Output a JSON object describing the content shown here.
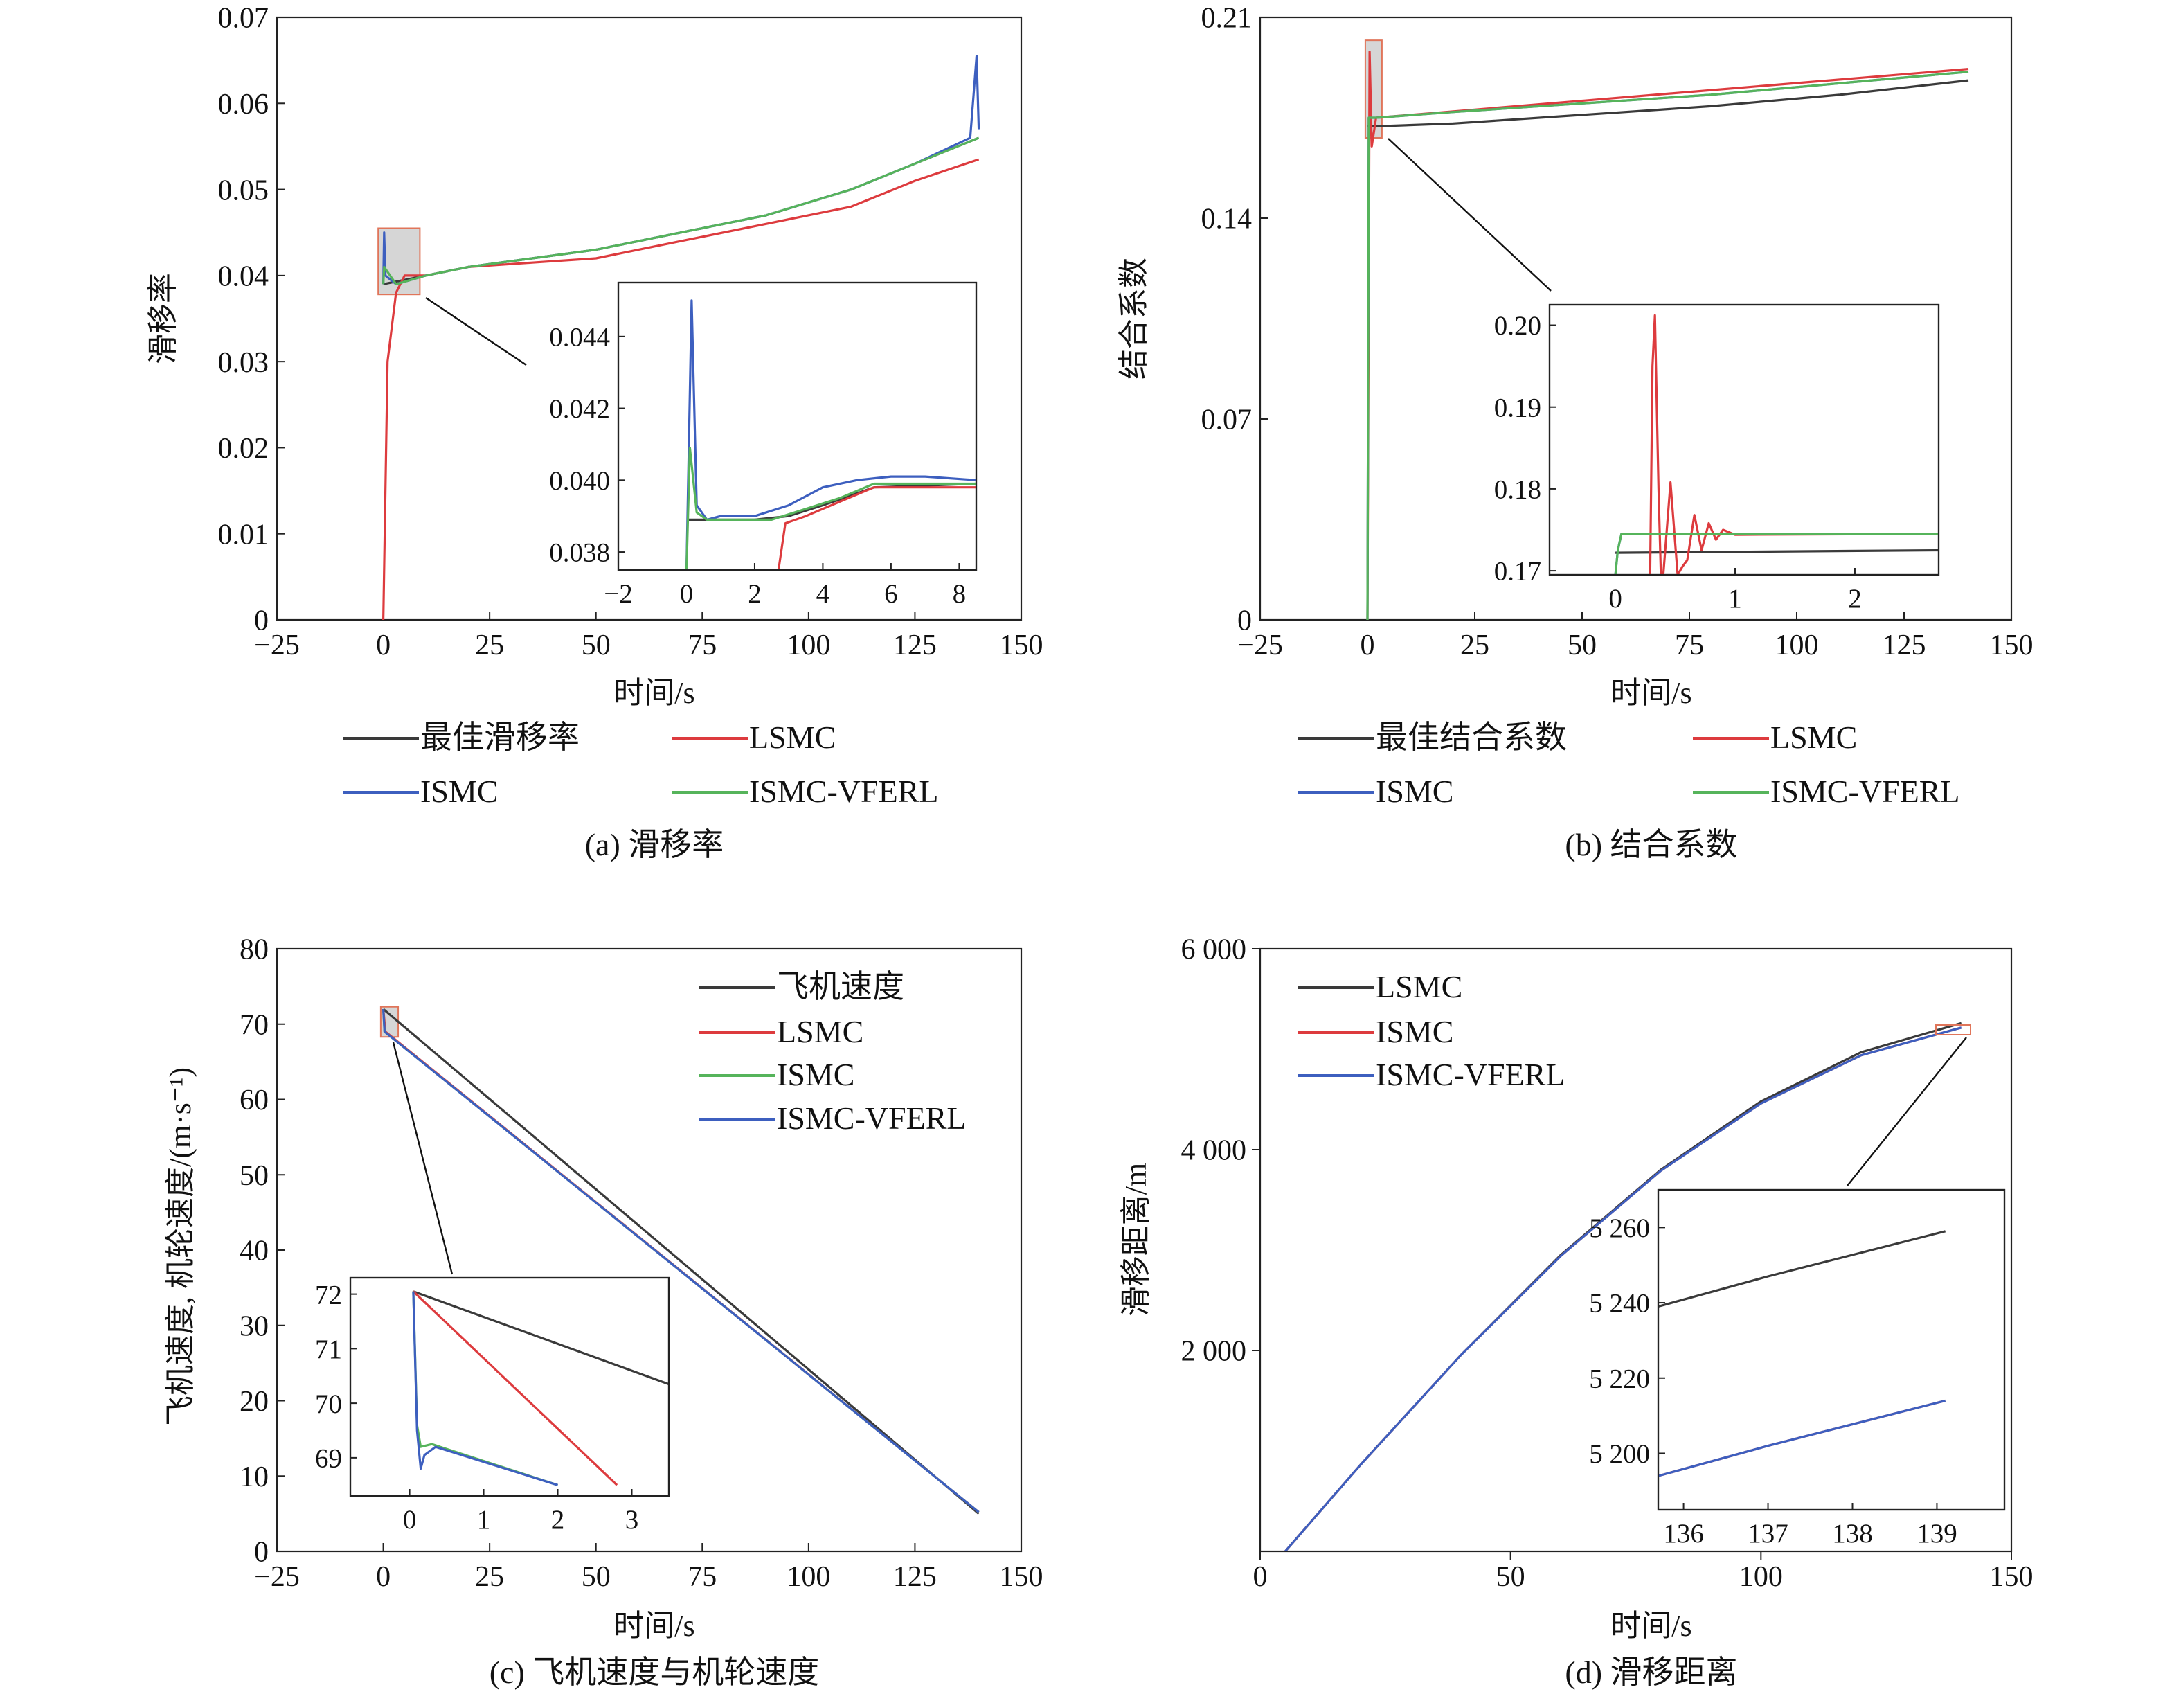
{
  "colors": {
    "black": "#3a3a3a",
    "red": "#dd3b3e",
    "blue": "#3d5fbf",
    "green": "#56b45b",
    "highlight_fill": "#c8c8c8",
    "highlight_stroke": "#e0755a"
  },
  "chart_data": [
    {
      "id": "a",
      "type": "line",
      "caption": "(a) 滑移率",
      "xlabel": "时间/s",
      "ylabel": "滑移率",
      "xlim": [
        -25,
        150
      ],
      "ylim": [
        0,
        0.07
      ],
      "xticks": [
        "−25",
        "0",
        "25",
        "50",
        "75",
        "100",
        "125",
        "150"
      ],
      "yticks": [
        "0",
        "0.01",
        "0.02",
        "0.03",
        "0.04",
        "0.05",
        "0.06",
        "0.07"
      ],
      "legend": [
        "最佳滑移率",
        "LSMC",
        "ISMC",
        "ISMC-VFERL"
      ],
      "series": [
        {
          "name": "最佳滑移率",
          "color": "black",
          "x": [
            0,
            10,
            20,
            35,
            50,
            70,
            90,
            110,
            125,
            140
          ],
          "y": [
            0.039,
            0.04,
            0.041,
            0.042,
            0.043,
            0.045,
            0.047,
            0.05,
            0.053,
            0.056
          ]
        },
        {
          "name": "LSMC",
          "color": "red",
          "x": [
            0,
            1,
            3,
            5,
            10,
            20,
            35,
            50,
            70,
            90,
            110,
            125,
            140
          ],
          "y": [
            0,
            0.03,
            0.038,
            0.04,
            0.04,
            0.041,
            0.0415,
            0.042,
            0.044,
            0.046,
            0.048,
            0.051,
            0.0535
          ]
        },
        {
          "name": "ISMC",
          "color": "blue",
          "x": [
            0,
            0.2,
            0.5,
            3,
            10,
            20,
            35,
            50,
            70,
            90,
            110,
            125,
            138,
            139.5,
            140
          ],
          "y": [
            0.039,
            0.045,
            0.04,
            0.039,
            0.04,
            0.041,
            0.042,
            0.043,
            0.045,
            0.047,
            0.05,
            0.053,
            0.056,
            0.0655,
            0.057
          ]
        },
        {
          "name": "ISMC-VFERL",
          "color": "green",
          "x": [
            0,
            0.2,
            3,
            10,
            20,
            35,
            50,
            70,
            90,
            110,
            125,
            140
          ],
          "y": [
            0.039,
            0.041,
            0.039,
            0.04,
            0.041,
            0.042,
            0.043,
            0.045,
            0.047,
            0.05,
            0.053,
            0.056
          ]
        }
      ],
      "inset": {
        "xlim": [
          -2,
          8.5
        ],
        "ylim": [
          0.0375,
          0.0455
        ],
        "xticks": [
          "−2",
          "0",
          "2",
          "4",
          "6",
          "8"
        ],
        "yticks": [
          "0.038",
          "0.040",
          "0.042",
          "0.044"
        ],
        "series": [
          {
            "name": "最佳滑移率",
            "color": "black",
            "x": [
              0,
              1,
              2,
              3,
              4,
              5.5,
              8.5
            ],
            "y": [
              0.0389,
              0.0389,
              0.0389,
              0.039,
              0.0393,
              0.0398,
              0.0399
            ]
          },
          {
            "name": "LSMC",
            "color": "red",
            "x": [
              2.7,
              2.9,
              3.5,
              4.5,
              5.5,
              8.5
            ],
            "y": [
              0.0375,
              0.0388,
              0.039,
              0.0394,
              0.0398,
              0.0398
            ]
          },
          {
            "name": "ISMC",
            "color": "blue",
            "x": [
              0,
              0.15,
              0.3,
              0.6,
              1,
              2,
              3,
              4,
              5,
              6,
              7,
              8.5
            ],
            "y": [
              0.0375,
              0.045,
              0.0393,
              0.0389,
              0.039,
              0.039,
              0.0393,
              0.0398,
              0.04,
              0.0401,
              0.0401,
              0.04
            ]
          },
          {
            "name": "ISMC-VFERL",
            "color": "green",
            "x": [
              0,
              0.1,
              0.3,
              0.6,
              1,
              2,
              2.5,
              3.5,
              4.5,
              5.5,
              8.5
            ],
            "y": [
              0.0375,
              0.0409,
              0.0391,
              0.0389,
              0.0389,
              0.0389,
              0.0389,
              0.0392,
              0.0395,
              0.0399,
              0.0399
            ]
          }
        ]
      }
    },
    {
      "id": "b",
      "type": "line",
      "caption": "(b) 结合系数",
      "xlabel": "时间/s",
      "ylabel": "结合系数",
      "xlim": [
        -25,
        150
      ],
      "ylim": [
        0,
        0.21
      ],
      "xticks": [
        "−25",
        "0",
        "25",
        "50",
        "75",
        "100",
        "125",
        "150"
      ],
      "yticks": [
        "0",
        "0.07",
        "0.14",
        "0.21"
      ],
      "legend": [
        "最佳结合系数",
        "LSMC",
        "ISMC",
        "ISMC-VFERL"
      ],
      "series": [
        {
          "name": "最佳结合系数",
          "color": "black",
          "x": [
            0,
            2,
            20,
            50,
            80,
            110,
            140
          ],
          "y": [
            0.172,
            0.172,
            0.173,
            0.176,
            0.179,
            0.183,
            0.188
          ]
        },
        {
          "name": "LSMC",
          "color": "red",
          "x": [
            0,
            0.5,
            1,
            2,
            140
          ],
          "y": [
            0,
            0.198,
            0.165,
            0.175,
            0.192
          ]
        },
        {
          "name": "ISMC",
          "color": "blue",
          "x": [
            0,
            0.3,
            2,
            20,
            50,
            80,
            110,
            140
          ],
          "y": [
            0,
            0.175,
            0.175,
            0.177,
            0.18,
            0.183,
            0.187,
            0.191
          ]
        },
        {
          "name": "ISMC-VFERL",
          "color": "green",
          "x": [
            0,
            0.3,
            2,
            20,
            50,
            80,
            110,
            140
          ],
          "y": [
            0,
            0.175,
            0.175,
            0.177,
            0.18,
            0.183,
            0.187,
            0.191
          ]
        }
      ],
      "inset": {
        "xlim": [
          -0.55,
          2.7
        ],
        "ylim": [
          0.1695,
          0.2025
        ],
        "xticks": [
          "0",
          "1",
          "2"
        ],
        "yticks": [
          "0.17",
          "0.18",
          "0.19",
          "0.20"
        ],
        "series": [
          {
            "name": "最佳结合系数",
            "color": "black",
            "x": [
              0,
              2.7
            ],
            "y": [
              0.1722,
              0.1725
            ]
          },
          {
            "name": "LSMC",
            "color": "red",
            "x": [
              0.29,
              0.31,
              0.33,
              0.36,
              0.38,
              0.4,
              0.46,
              0.52,
              0.56,
              0.6,
              0.66,
              0.72,
              0.78,
              0.84,
              0.9,
              1.0,
              2.7
            ],
            "y": [
              0.1695,
              0.195,
              0.2012,
              0.18,
              0.1695,
              0.1695,
              0.1808,
              0.1695,
              0.1705,
              0.1713,
              0.1768,
              0.1725,
              0.1758,
              0.1738,
              0.175,
              0.1744,
              0.1745
            ]
          },
          {
            "name": "ISMC",
            "color": "blue",
            "x": [
              0,
              0.02,
              0.05,
              2.7
            ],
            "y": [
              0.1695,
              0.1725,
              0.1745,
              0.1745
            ]
          },
          {
            "name": "ISMC-VFERL",
            "color": "green",
            "x": [
              0,
              0.02,
              0.05,
              2.7
            ],
            "y": [
              0.1695,
              0.1725,
              0.1745,
              0.1745
            ]
          }
        ]
      }
    },
    {
      "id": "c",
      "type": "line",
      "caption": "(c) 飞机速度与机轮速度",
      "xlabel": "时间/s",
      "ylabel": "飞机速度, 机轮速度/(m·s⁻¹)",
      "xlim": [
        -25,
        150
      ],
      "ylim": [
        0,
        80
      ],
      "xticks": [
        "−25",
        "0",
        "25",
        "50",
        "75",
        "100",
        "125",
        "150"
      ],
      "yticks": [
        "0",
        "10",
        "20",
        "30",
        "40",
        "50",
        "60",
        "70",
        "80"
      ],
      "legend": [
        "飞机速度",
        "LSMC",
        "ISMC",
        "ISMC-VFERL"
      ],
      "series": [
        {
          "name": "飞机速度",
          "color": "black",
          "x": [
            0,
            140
          ],
          "y": [
            72,
            5
          ]
        },
        {
          "name": "LSMC",
          "color": "red",
          "x": [
            0,
            0.5,
            140
          ],
          "y": [
            72,
            69,
            5.2
          ]
        },
        {
          "name": "ISMC",
          "color": "green",
          "x": [
            0,
            0.3,
            140
          ],
          "y": [
            72,
            69,
            5.2
          ]
        },
        {
          "name": "ISMC-VFERL",
          "color": "blue",
          "x": [
            0,
            0.3,
            140
          ],
          "y": [
            72,
            69,
            5.2
          ]
        }
      ],
      "inset": {
        "xlim": [
          -0.8,
          3.5
        ],
        "ylim": [
          68.3,
          72.3
        ],
        "xticks": [
          "0",
          "1",
          "2",
          "3"
        ],
        "yticks": [
          "69",
          "70",
          "71",
          "72"
        ],
        "series": [
          {
            "name": "飞机速度",
            "color": "black",
            "x": [
              0.05,
              3.5
            ],
            "y": [
              72.05,
              70.35
            ]
          },
          {
            "name": "LSMC",
            "color": "red",
            "x": [
              0.05,
              2.8
            ],
            "y": [
              72.05,
              68.5
            ]
          },
          {
            "name": "ISMC",
            "color": "green",
            "x": [
              0.05,
              0.1,
              0.15,
              0.3,
              2.0
            ],
            "y": [
              72.05,
              69.6,
              69.2,
              69.25,
              68.5
            ]
          },
          {
            "name": "ISMC-VFERL",
            "color": "blue",
            "x": [
              0.05,
              0.1,
              0.15,
              0.2,
              0.35,
              2.0
            ],
            "y": [
              72.05,
              69.5,
              68.8,
              69.05,
              69.2,
              68.5
            ]
          }
        ]
      }
    },
    {
      "id": "d",
      "type": "line",
      "caption": "(d) 滑移距离",
      "xlabel": "时间/s",
      "ylabel": "滑移距离/m",
      "xlim": [
        0,
        150
      ],
      "ylim": [
        0,
        6000
      ],
      "xticks": [
        "0",
        "50",
        "100",
        "150"
      ],
      "yticks": [
        "2 000",
        "4 000",
        "6 000"
      ],
      "legend": [
        "LSMC",
        "ISMC",
        "ISMC-VFERL"
      ],
      "series": [
        {
          "name": "LSMC",
          "color": "black",
          "x": [
            5,
            20,
            40,
            60,
            80,
            100,
            120,
            140
          ],
          "y": [
            0,
            860,
            1950,
            2950,
            3800,
            4480,
            4970,
            5260
          ]
        },
        {
          "name": "ISMC",
          "color": "red",
          "x": [
            5,
            20,
            40,
            60,
            80,
            100,
            120,
            140
          ],
          "y": [
            0,
            860,
            1950,
            2940,
            3790,
            4460,
            4940,
            5215
          ]
        },
        {
          "name": "ISMC-VFERL",
          "color": "blue",
          "x": [
            5,
            20,
            40,
            60,
            80,
            100,
            120,
            140
          ],
          "y": [
            0,
            860,
            1950,
            2940,
            3790,
            4460,
            4940,
            5215
          ]
        }
      ],
      "inset": {
        "xlim": [
          135.7,
          139.8
        ],
        "ylim": [
          5185,
          5270
        ],
        "xticks": [
          "136",
          "137",
          "138",
          "139"
        ],
        "yticks": [
          "5 200",
          "5 220",
          "5 240",
          "5 260"
        ],
        "series": [
          {
            "name": "LSMC",
            "color": "black",
            "x": [
              135.7,
              137,
              139.1
            ],
            "y": [
              5239,
              5247,
              5259
            ]
          },
          {
            "name": "ISMC",
            "color": "red",
            "x": [
              135.7,
              137,
              139.1
            ],
            "y": [
              5194,
              5202,
              5214
            ]
          },
          {
            "name": "ISMC-VFERL",
            "color": "blue",
            "x": [
              135.7,
              137,
              139.1
            ],
            "y": [
              5194,
              5202,
              5214
            ]
          }
        ]
      }
    }
  ]
}
